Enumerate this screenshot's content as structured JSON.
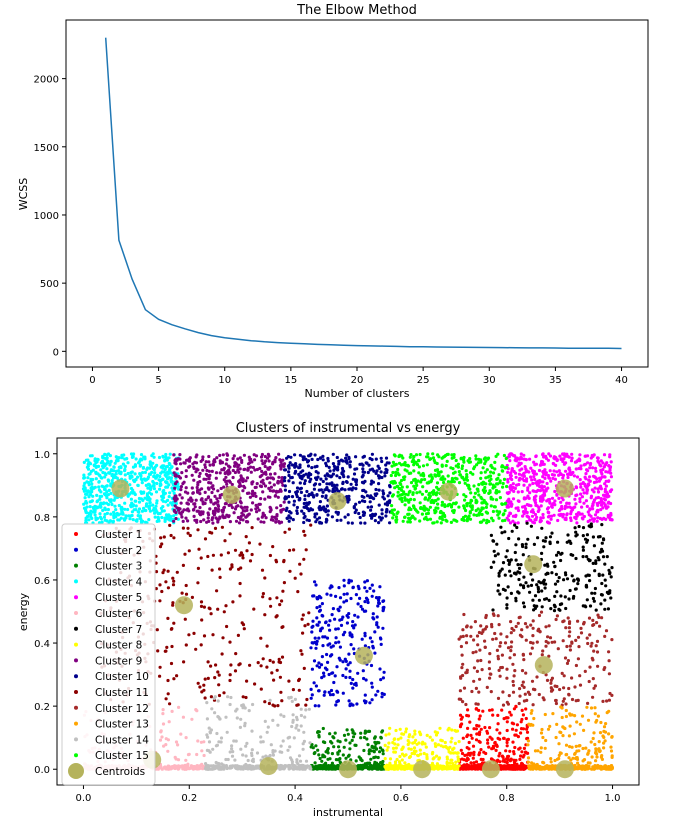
{
  "charts": {
    "elbow": {
      "type": "line",
      "title": "The Elbow Method",
      "xlabel": "Number of clusters",
      "ylabel": "WCSS",
      "xlim": [
        -2,
        42
      ],
      "ylim": [
        -115,
        2430
      ],
      "xticks": [
        0,
        5,
        10,
        15,
        20,
        25,
        30,
        35,
        40
      ],
      "yticks": [
        0,
        500,
        1000,
        1500,
        2000
      ],
      "line_color": "#1f77b4",
      "x": [
        1,
        2,
        3,
        4,
        5,
        6,
        7,
        8,
        9,
        10,
        11,
        12,
        13,
        14,
        15,
        16,
        17,
        18,
        19,
        20,
        21,
        22,
        23,
        24,
        25,
        26,
        27,
        28,
        29,
        30,
        31,
        32,
        33,
        34,
        35,
        36,
        37,
        38,
        39,
        40
      ],
      "values": [
        2300,
        815,
        530,
        305,
        235,
        195,
        165,
        137,
        115,
        100,
        88,
        78,
        70,
        64,
        59,
        55,
        51,
        48,
        45,
        42,
        40,
        38,
        36,
        34,
        33,
        32,
        31,
        30,
        29,
        28,
        27,
        26,
        25,
        25,
        24,
        23,
        23,
        22,
        22,
        21
      ]
    },
    "clusters": {
      "type": "scatter",
      "title": "Clusters of instrumental vs energy",
      "xlabel": "instrumental",
      "ylabel": "energy",
      "xlim": [
        -0.05,
        1.05
      ],
      "ylim": [
        -0.05,
        1.05
      ],
      "xticks": [
        0.0,
        0.2,
        0.4,
        0.6,
        0.8,
        1.0
      ],
      "yticks": [
        0.0,
        0.2,
        0.4,
        0.6,
        0.8,
        1.0
      ],
      "series": [
        {
          "name": "Cluster 1",
          "color": "#ff0000",
          "region": {
            "x": [
              0.71,
              0.84
            ],
            "y": [
              0.0,
              0.2
            ]
          },
          "count": 550
        },
        {
          "name": "Cluster 2",
          "color": "#0000cd",
          "region": {
            "x": [
              0.43,
              0.57
            ],
            "y": [
              0.2,
              0.6
            ]
          },
          "count": 260
        },
        {
          "name": "Cluster 3",
          "color": "#008000",
          "region": {
            "x": [
              0.43,
              0.57
            ],
            "y": [
              0.0,
              0.13
            ]
          },
          "count": 420
        },
        {
          "name": "Cluster 4",
          "color": "#00ffff",
          "region": {
            "x": [
              0.0,
              0.18
            ],
            "y": [
              0.78,
              1.0
            ]
          },
          "count": 650
        },
        {
          "name": "Cluster 5",
          "color": "#ff00ff",
          "region": {
            "x": [
              0.8,
              1.0
            ],
            "y": [
              0.78,
              1.0
            ]
          },
          "count": 600
        },
        {
          "name": "Cluster 6",
          "color": "#ffb6c1",
          "region": {
            "x": [
              0.0,
              0.23
            ],
            "y": [
              0.0,
              0.2
            ]
          },
          "count": 300
        },
        {
          "name": "Cluster 7",
          "color": "#000000",
          "region": {
            "x": [
              0.77,
              1.0
            ],
            "y": [
              0.5,
              0.78
            ]
          },
          "count": 260
        },
        {
          "name": "Cluster 8",
          "color": "#ffff00",
          "region": {
            "x": [
              0.57,
              0.71
            ],
            "y": [
              0.0,
              0.13
            ]
          },
          "count": 420
        },
        {
          "name": "Cluster 9",
          "color": "#800080",
          "region": {
            "x": [
              0.17,
              0.38
            ],
            "y": [
              0.78,
              1.0
            ]
          },
          "count": 500
        },
        {
          "name": "Cluster 10",
          "color": "#00008b",
          "region": {
            "x": [
              0.38,
              0.58
            ],
            "y": [
              0.78,
              1.0
            ]
          },
          "count": 420
        },
        {
          "name": "Cluster 11",
          "color": "#8b0000",
          "region": {
            "x": [
              0.03,
              0.43
            ],
            "y": [
              0.2,
              0.78
            ]
          },
          "count": 320
        },
        {
          "name": "Cluster 12",
          "color": "#a52a2a",
          "region": {
            "x": [
              0.71,
              1.0
            ],
            "y": [
              0.2,
              0.5
            ]
          },
          "count": 280
        },
        {
          "name": "Cluster 13",
          "color": "#ffa500",
          "region": {
            "x": [
              0.84,
              1.0
            ],
            "y": [
              0.0,
              0.2
            ]
          },
          "count": 420
        },
        {
          "name": "Cluster 14",
          "color": "#c0c0c0",
          "region": {
            "x": [
              0.23,
              0.43
            ],
            "y": [
              0.0,
              0.23
            ]
          },
          "count": 380
        },
        {
          "name": "Cluster 15",
          "color": "#00ff00",
          "region": {
            "x": [
              0.58,
              0.8
            ],
            "y": [
              0.78,
              1.0
            ]
          },
          "count": 550
        }
      ],
      "centroids": {
        "name": "Centroids",
        "color": "#b5b35c",
        "points": [
          {
            "x": 0.07,
            "y": 0.89
          },
          {
            "x": 0.28,
            "y": 0.87
          },
          {
            "x": 0.48,
            "y": 0.85
          },
          {
            "x": 0.69,
            "y": 0.88
          },
          {
            "x": 0.91,
            "y": 0.89
          },
          {
            "x": 0.19,
            "y": 0.52
          },
          {
            "x": 0.53,
            "y": 0.36
          },
          {
            "x": 0.85,
            "y": 0.65
          },
          {
            "x": 0.87,
            "y": 0.33
          },
          {
            "x": 0.13,
            "y": 0.03
          },
          {
            "x": 0.35,
            "y": 0.01
          },
          {
            "x": 0.5,
            "y": 0.0
          },
          {
            "x": 0.64,
            "y": 0.0
          },
          {
            "x": 0.77,
            "y": 0.0
          },
          {
            "x": 0.91,
            "y": 0.0
          }
        ]
      },
      "legend_position": "lower-left"
    }
  }
}
